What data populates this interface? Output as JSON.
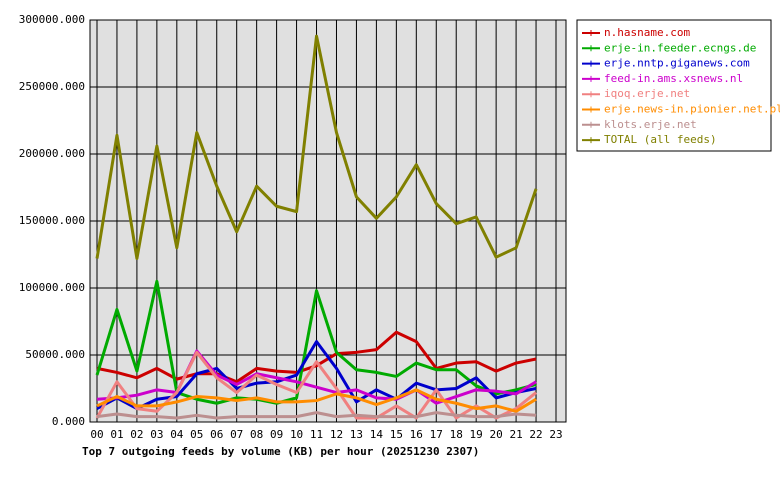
{
  "chart_data": {
    "type": "line",
    "title": "Top 7 outgoing feeds by volume (KB) per hour (20251230 2307)",
    "categories": [
      "00",
      "01",
      "02",
      "03",
      "04",
      "05",
      "06",
      "07",
      "08",
      "09",
      "10",
      "11",
      "12",
      "13",
      "14",
      "15",
      "16",
      "17",
      "18",
      "19",
      "20",
      "21",
      "22",
      "23"
    ],
    "ylim": [
      0,
      300000
    ],
    "yticks": [
      {
        "value": 0,
        "label": "0.000"
      },
      {
        "value": 50000,
        "label": "50000.000"
      },
      {
        "value": 100000,
        "label": "100000.000"
      },
      {
        "value": 150000,
        "label": "150000.000"
      },
      {
        "value": 200000,
        "label": "200000.000"
      },
      {
        "value": 250000,
        "label": "250000.000"
      },
      {
        "value": 300000,
        "label": "300000.000"
      }
    ],
    "grid": true,
    "legend": "right",
    "series": [
      {
        "name": "n.hasname.com",
        "color": "#cc0000",
        "values": [
          40000,
          37000,
          33000,
          40000,
          32000,
          36000,
          36000,
          30000,
          40000,
          38000,
          37000,
          42000,
          51000,
          52000,
          54000,
          67000,
          60000,
          40000,
          44000,
          45000,
          38000,
          44000,
          47000,
          null
        ]
      },
      {
        "name": "erje-in.feeder.ecngs.de",
        "color": "#00aa00",
        "values": [
          35000,
          84000,
          38000,
          105000,
          22000,
          17000,
          14000,
          18000,
          17000,
          14000,
          18000,
          98000,
          52000,
          39000,
          37000,
          34000,
          44000,
          39000,
          39000,
          27000,
          21000,
          24000,
          28000,
          null
        ]
      },
      {
        "name": "erje.nntp.giganews.com",
        "color": "#0000cc",
        "values": [
          10000,
          18000,
          10000,
          17000,
          19000,
          36000,
          40000,
          25000,
          29000,
          30000,
          35000,
          60000,
          40000,
          15000,
          24000,
          17000,
          29000,
          24000,
          25000,
          33000,
          18000,
          22000,
          25000,
          null
        ]
      },
      {
        "name": "feed-in.ams.xsnews.nl",
        "color": "#cc00cc",
        "values": [
          17000,
          18000,
          20000,
          24000,
          22000,
          53000,
          35000,
          28000,
          36000,
          33000,
          30000,
          26000,
          22000,
          24000,
          18000,
          17000,
          24000,
          14000,
          19000,
          24000,
          23000,
          21000,
          30000,
          null
        ]
      },
      {
        "name": "iqoq.erje.net",
        "color": "#f08080",
        "values": [
          3000,
          30000,
          10000,
          8000,
          22000,
          52000,
          33000,
          22000,
          35000,
          28000,
          22000,
          45000,
          25000,
          3000,
          3000,
          12000,
          3000,
          24000,
          3000,
          12000,
          3000,
          10000,
          22000,
          null
        ]
      },
      {
        "name": "erje.news-in.pionier.net.pl",
        "color": "#ff8c00",
        "values": [
          12000,
          19000,
          12000,
          12000,
          15000,
          19000,
          18000,
          16000,
          18000,
          15000,
          15000,
          16000,
          21000,
          18000,
          13000,
          18000,
          24000,
          17000,
          14000,
          10000,
          12000,
          8000,
          17000,
          null
        ]
      },
      {
        "name": "klots.erje.net",
        "color": "#bc8f8f",
        "values": [
          4000,
          6000,
          4000,
          4000,
          3000,
          5000,
          3000,
          4000,
          4000,
          4000,
          4000,
          7000,
          4000,
          5000,
          4000,
          4000,
          4000,
          7000,
          5000,
          4000,
          4000,
          6000,
          5000,
          null
        ]
      },
      {
        "name": "TOTAL (all feeds)",
        "color": "#808000",
        "values": [
          122000,
          214000,
          122000,
          206000,
          130000,
          216000,
          176000,
          142000,
          176000,
          161000,
          157000,
          288000,
          216000,
          168000,
          152000,
          168000,
          192000,
          163000,
          148000,
          153000,
          123000,
          130000,
          174000,
          null
        ]
      }
    ]
  }
}
